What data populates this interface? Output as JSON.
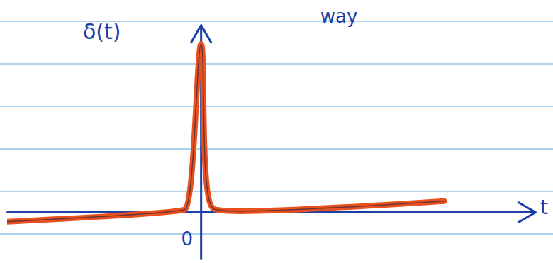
{
  "chart_data": {
    "type": "line",
    "annotations": [
      {
        "text": "way"
      }
    ],
    "x_label": "t",
    "y_label": "δ(t)",
    "x": [
      -2.75,
      -0.3,
      -0.22,
      0,
      0.15,
      0.3,
      3.45
    ],
    "values": [
      -0.05,
      0.01,
      0.02,
      0.9,
      0.03,
      0.01,
      0.06
    ],
    "color": "#e8501e",
    "xlim": [
      -2.75,
      4.75
    ],
    "ylim": [
      -0.25,
      1.0
    ],
    "xticks": [
      0
    ],
    "tick_labels": "x",
    "grid": false
  }
}
